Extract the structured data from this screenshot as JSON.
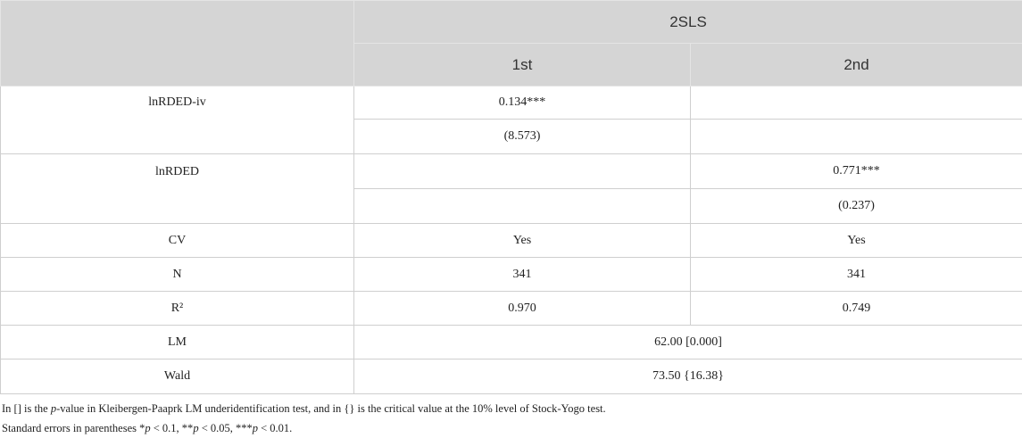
{
  "table": {
    "header": {
      "group": "2SLS",
      "columns": [
        "1st",
        "2nd"
      ]
    },
    "rows": [
      {
        "label": "lnRDED-iv",
        "first": [
          "0.134***",
          "(8.573)"
        ]
      },
      {
        "label": "lnRDED",
        "second": [
          "0.771***",
          "(0.237)"
        ]
      },
      {
        "label": "CV",
        "first": "Yes",
        "second": "Yes"
      },
      {
        "label": "N",
        "first": "341",
        "second": "341"
      },
      {
        "label": "R²",
        "first": "0.970",
        "second": "0.749"
      },
      {
        "label": "LM",
        "both": "62.00 [0.000]"
      },
      {
        "label": "Wald",
        "both": "73.50 {16.38}"
      }
    ]
  },
  "notes": [
    [
      "In [] is the ",
      "p",
      "-value in Kleibergen-Paaprk LM underidentification test, and in {} is the critical value at the 10% level of Stock-Yogo test."
    ],
    [
      "Standard errors in parentheses *",
      "p",
      " < 0.1, **",
      "p",
      " < 0.05, ***",
      "p",
      " < 0.01."
    ]
  ]
}
